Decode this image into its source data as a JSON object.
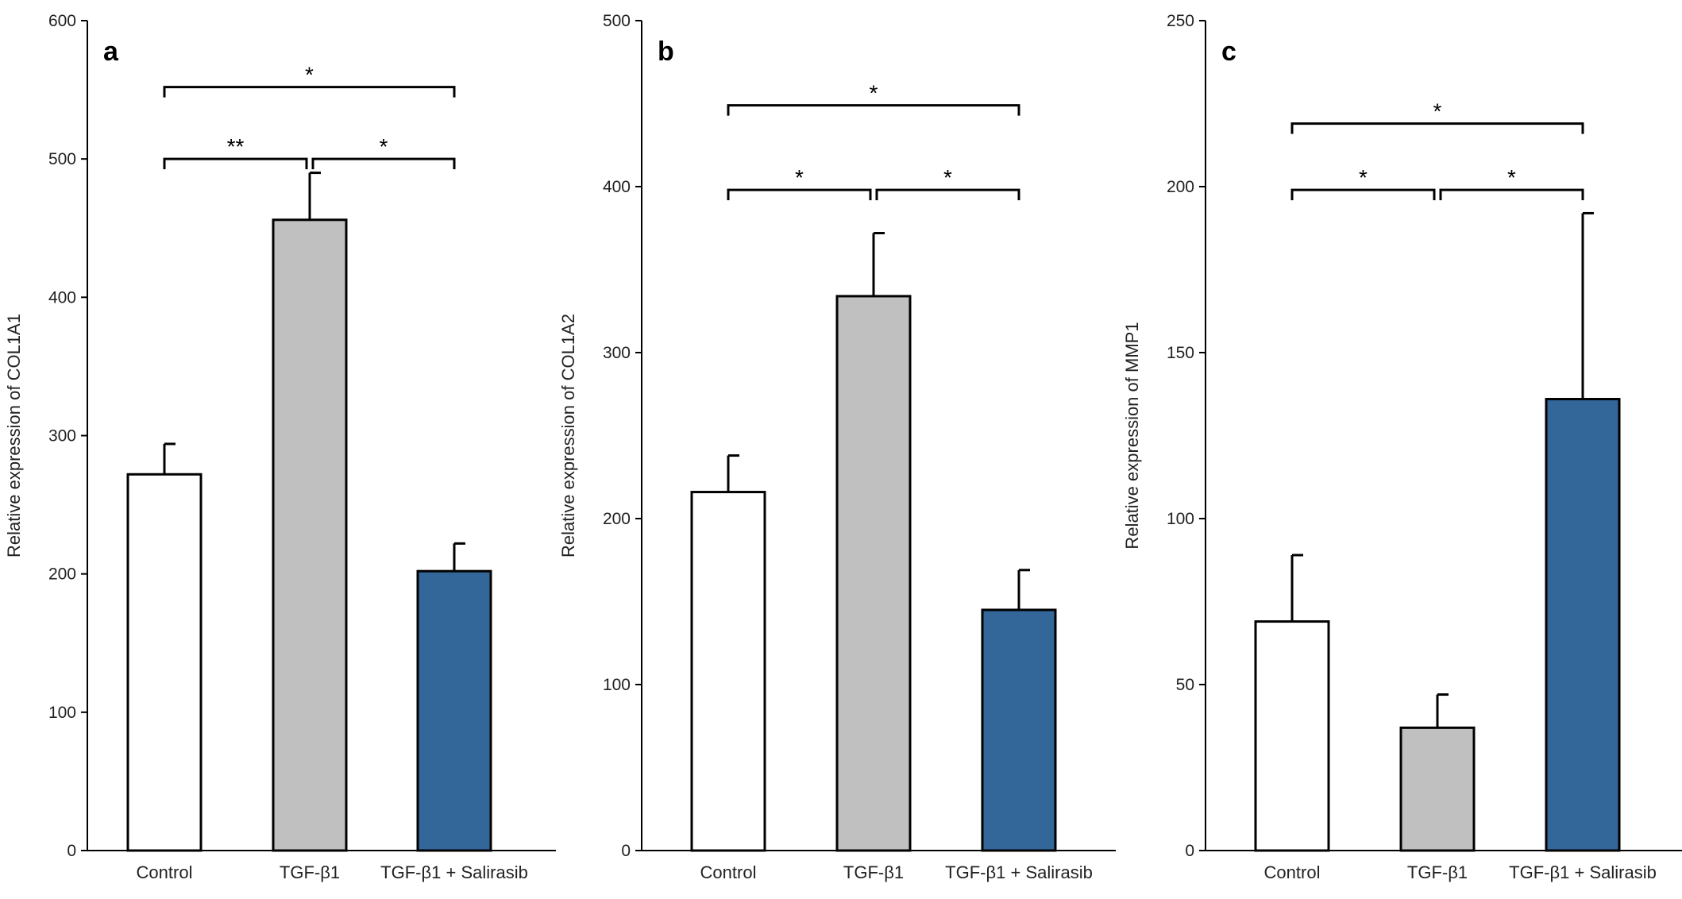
{
  "chart_data": [
    {
      "type": "bar",
      "panel": "a",
      "categories": [
        "Control",
        "TGF-β1",
        "TGF-β1 + Salirasib"
      ],
      "values": [
        272,
        456,
        202
      ],
      "errors": [
        22,
        34,
        20
      ],
      "ylabel": "Relative expression of COL1A1",
      "ylim": [
        0,
        600
      ],
      "yticks": [
        0,
        100,
        200,
        300,
        400,
        500,
        600
      ],
      "significance": [
        {
          "from": 0,
          "to": 2,
          "label": "*",
          "level": 552
        },
        {
          "from": 0,
          "to": 1,
          "label": "**",
          "level": 500
        },
        {
          "from": 1,
          "to": 2,
          "label": "*",
          "level": 500
        }
      ]
    },
    {
      "type": "bar",
      "panel": "b",
      "categories": [
        "Control",
        "TGF-β1",
        "TGF-β1 + Salirasib"
      ],
      "values": [
        216,
        334,
        145
      ],
      "errors": [
        22,
        38,
        24
      ],
      "ylabel": "Relative expression of COL1A2",
      "ylim": [
        0,
        500
      ],
      "yticks": [
        0,
        100,
        200,
        300,
        400,
        500
      ],
      "significance": [
        {
          "from": 0,
          "to": 2,
          "label": "*",
          "level": 449
        },
        {
          "from": 0,
          "to": 1,
          "label": "*",
          "level": 398
        },
        {
          "from": 1,
          "to": 2,
          "label": "*",
          "level": 398
        }
      ]
    },
    {
      "type": "bar",
      "panel": "c",
      "categories": [
        "Control",
        "TGF-β1",
        "TGF-β1 + Salirasib"
      ],
      "values": [
        69,
        37,
        136
      ],
      "errors": [
        20,
        10,
        56
      ],
      "ylabel": "Relative expression of MMP1",
      "ylim": [
        0,
        250
      ],
      "yticks": [
        0,
        50,
        100,
        150,
        200,
        250
      ],
      "significance": [
        {
          "from": 0,
          "to": 2,
          "label": "*",
          "level": 219
        },
        {
          "from": 0,
          "to": 1,
          "label": "*",
          "level": 199
        },
        {
          "from": 1,
          "to": 2,
          "label": "*",
          "level": 199
        }
      ]
    }
  ],
  "colors": {
    "control": "#ffffff",
    "tgf": "#c0c0c0",
    "salirasib": "#336699",
    "stroke": "#000000"
  }
}
